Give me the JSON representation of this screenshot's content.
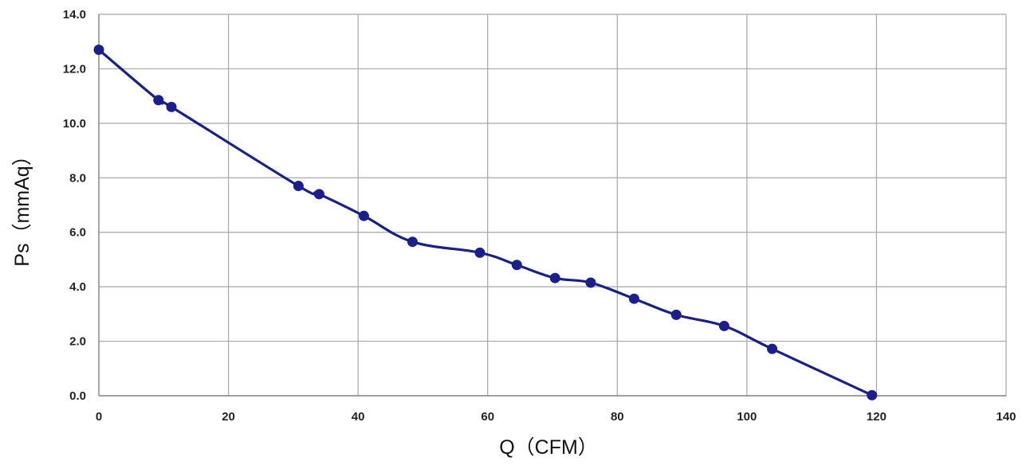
{
  "chart_data": {
    "type": "line",
    "xlabel": "Q（CFM）",
    "ylabel": "Ps（mmAq）",
    "xlim": [
      0,
      140
    ],
    "ylim": [
      0,
      14
    ],
    "x_ticks": [
      "0",
      "20",
      "40",
      "60",
      "80",
      "100",
      "120",
      "140"
    ],
    "y_ticks": [
      "0.0",
      "2.0",
      "4.0",
      "6.0",
      "8.0",
      "10.0",
      "12.0",
      "14.0"
    ],
    "grid": true,
    "legend": "none",
    "series": [
      {
        "color": "#1a1f8c",
        "marker": "circle",
        "points": [
          {
            "x": 0,
            "y": 12.7
          },
          {
            "x": 9.2,
            "y": 10.85
          },
          {
            "x": 11.2,
            "y": 10.6
          },
          {
            "x": 30.8,
            "y": 7.7
          },
          {
            "x": 34.0,
            "y": 7.4
          },
          {
            "x": 40.9,
            "y": 6.6
          },
          {
            "x": 48.4,
            "y": 5.65
          },
          {
            "x": 58.8,
            "y": 5.25
          },
          {
            "x": 64.5,
            "y": 4.8
          },
          {
            "x": 70.4,
            "y": 4.32
          },
          {
            "x": 75.9,
            "y": 4.15
          },
          {
            "x": 82.6,
            "y": 3.56
          },
          {
            "x": 89.1,
            "y": 2.97
          },
          {
            "x": 96.5,
            "y": 2.56
          },
          {
            "x": 103.9,
            "y": 1.72
          },
          {
            "x": 119.3,
            "y": 0.02
          }
        ]
      }
    ]
  },
  "colors": {
    "line": "#1a1f8c",
    "grid": "#a6a6a6",
    "axis": "#888888",
    "text": "#222222"
  }
}
